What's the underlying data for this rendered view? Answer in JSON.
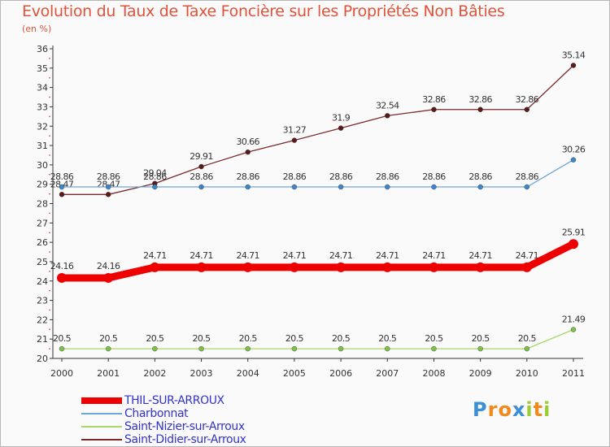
{
  "title": "Evolution du Taux de Taxe Foncière sur les Propriétés Non Bâties",
  "subtitle": "(en %)",
  "logo": {
    "p": "P",
    "r": "r",
    "o": "o",
    "x": "x",
    "i1": "i",
    "t": "t",
    "i2": "i"
  },
  "chart_data": {
    "type": "line",
    "title": "Evolution du Taux de Taxe Foncière sur les Propriétés Non Bâties",
    "ylabel": "(en %)",
    "xlabel": "",
    "ylim": [
      20,
      36
    ],
    "yticks": [
      "20",
      "21",
      "22",
      "23",
      "24",
      "25",
      "26",
      "27",
      "28",
      "29",
      "30",
      "31",
      "32",
      "33",
      "34",
      "35",
      "36"
    ],
    "categories": [
      "2000",
      "2001",
      "2002",
      "2003",
      "2004",
      "2005",
      "2006",
      "2007",
      "2008",
      "2009",
      "2010",
      "2011"
    ],
    "grid": false,
    "legend_position": "bottom-left",
    "series": [
      {
        "name": "Saint-Didier-sur-Arroux",
        "color": "#7a2a2a",
        "marker": "#5a1a1a",
        "width": "thin",
        "values": [
          28.47,
          28.47,
          29.04,
          29.91,
          30.66,
          31.27,
          31.9,
          32.54,
          32.86,
          32.86,
          32.86,
          35.14
        ],
        "labels": [
          "28.47",
          "28.47",
          "29.04",
          "29.91",
          "30.66",
          "31.27",
          "31.9",
          "32.54",
          "32.86",
          "32.86",
          "32.86",
          "35.14"
        ]
      },
      {
        "name": "Charbonnat",
        "color": "#6ea6d8",
        "marker": "#3d86c8",
        "width": "thin",
        "values": [
          28.86,
          28.86,
          28.86,
          28.86,
          28.86,
          28.86,
          28.86,
          28.86,
          28.86,
          28.86,
          28.86,
          30.26
        ],
        "labels": [
          "28.86",
          "28.86",
          "28.86",
          "28.86",
          "28.86",
          "28.86",
          "28.86",
          "28.86",
          "28.86",
          "28.86",
          "28.86",
          "30.26"
        ]
      },
      {
        "name": "Saint-Nizier-sur-Arroux",
        "color": "#a6d96a",
        "marker": "#7cc24a",
        "width": "thin",
        "values": [
          20.5,
          20.5,
          20.5,
          20.5,
          20.5,
          20.5,
          20.5,
          20.5,
          20.5,
          20.5,
          20.5,
          21.49
        ],
        "labels": [
          "20.5",
          "20.5",
          "20.5",
          "20.5",
          "20.5",
          "20.5",
          "20.5",
          "20.5",
          "20.5",
          "20.5",
          "20.5",
          "21.49"
        ]
      },
      {
        "name": "THIL-SUR-ARROUX",
        "color": "#ee0000",
        "marker": "#ee0000",
        "width": "thick",
        "values": [
          24.16,
          24.16,
          24.71,
          24.71,
          24.71,
          24.71,
          24.71,
          24.71,
          24.71,
          24.71,
          24.71,
          25.91
        ],
        "labels": [
          "24.16",
          "24.16",
          "24.71",
          "24.71",
          "24.71",
          "24.71",
          "24.71",
          "24.71",
          "24.71",
          "24.71",
          "24.71",
          "25.91"
        ]
      }
    ],
    "legend": [
      "THIL-SUR-ARROUX",
      "Charbonnat",
      "Saint-Nizier-sur-Arroux",
      "Saint-Didier-sur-Arroux"
    ]
  }
}
